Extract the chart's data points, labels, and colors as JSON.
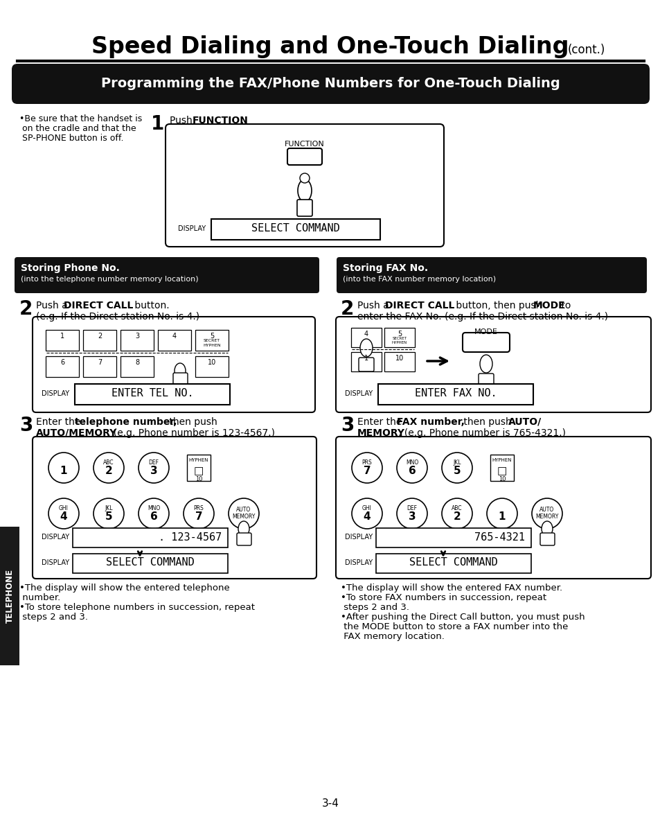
{
  "title_main": "Speed Dialing and One-Touch Dialing",
  "title_cont": "(cont.)",
  "section_header": "Programming the FAX/Phone Numbers for One-Touch Dialing",
  "bg_color": "#ffffff",
  "header_bg": "#111111",
  "header_text_color": "#ffffff",
  "step1_bullet_lines": [
    "•Be sure that the handset is",
    " on the cradle and that the",
    " SP-PHONE button is off."
  ],
  "step2_left_display": "ENTER TEL NO.",
  "step2_right_display": "ENTER FAX NO.",
  "step3_left_display1": ". 123-4567",
  "step3_left_display2": "SELECT COMMAND",
  "step3_right_display1": "765-4321",
  "step3_right_display2": "SELECT COMMAND",
  "step1_display": "SELECT COMMAND",
  "left_notes": [
    "•The display will show the entered telephone",
    " number.",
    "•To store telephone numbers in succession, repeat",
    " steps 2 and 3."
  ],
  "right_notes": [
    "•The display will show the entered FAX number.",
    "•To store FAX numbers in succession, repeat",
    " steps 2 and 3.",
    "•After pushing the Direct Call button, you must push",
    " the MODE button to store a FAX number into the",
    " FAX memory location."
  ],
  "page_num": "3-4",
  "sidebar_text": "TELEPHONE",
  "sidebar_bg": "#1a1a1a"
}
